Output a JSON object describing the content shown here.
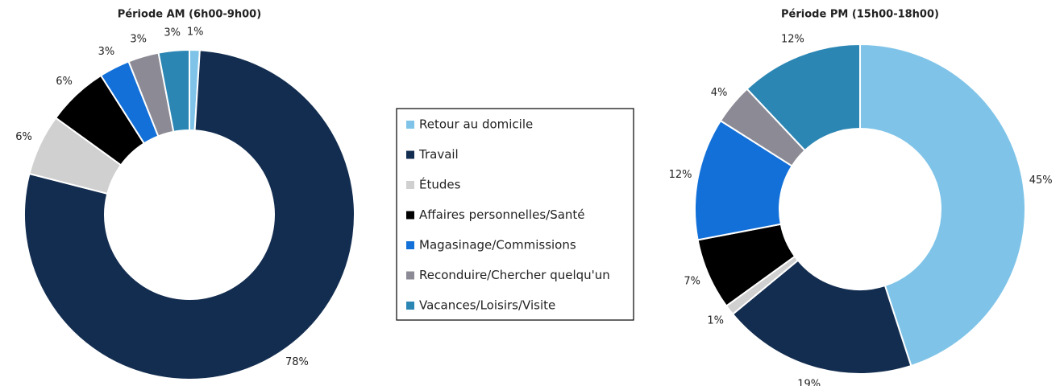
{
  "chart_data": {
    "type": "pie",
    "categories": [
      "Retour au domicile",
      "Travail",
      "Études",
      "Affaires personnelles/Santé",
      "Magasinage/Commissions",
      "Reconduire/Chercher quelqu'un",
      "Vacances/Loisirs/Visite"
    ],
    "colors": [
      "#7fc4e8",
      "#132d50",
      "#d0d0d0",
      "#000000",
      "#1270d8",
      "#8c8a94",
      "#2b86b4"
    ],
    "series": [
      {
        "name": "Période AM (6h00-9h00)",
        "values": [
          1,
          78,
          6,
          6,
          3,
          3,
          3
        ],
        "value_labels": [
          "1%",
          "78%",
          "6%",
          "6%",
          "3%",
          "3%",
          "3%"
        ]
      },
      {
        "name": "Période PM (15h00-18h00)",
        "values": [
          45,
          19,
          1,
          7,
          12,
          4,
          12
        ],
        "value_labels": [
          "45%",
          "19%",
          "1%",
          "7%",
          "12%",
          "4%",
          "12%"
        ]
      }
    ]
  }
}
